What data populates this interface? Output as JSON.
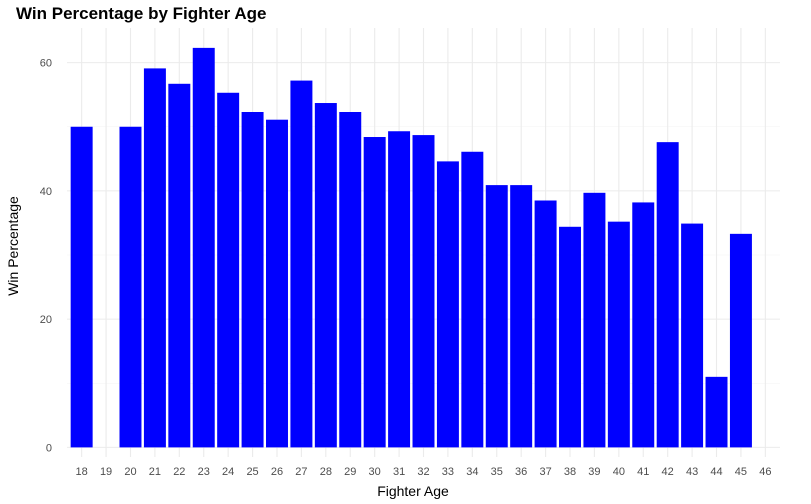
{
  "chart_data": {
    "type": "bar",
    "title": "Win Percentage by Fighter Age",
    "xlabel": "Fighter Age",
    "ylabel": "Win Percentage",
    "categories": [
      "18",
      "19",
      "20",
      "21",
      "22",
      "23",
      "24",
      "25",
      "26",
      "27",
      "28",
      "29",
      "30",
      "31",
      "32",
      "33",
      "34",
      "35",
      "36",
      "37",
      "38",
      "39",
      "40",
      "41",
      "42",
      "43",
      "44",
      "45",
      "46"
    ],
    "values": [
      50.0,
      null,
      50.0,
      59.1,
      56.7,
      62.3,
      55.3,
      52.3,
      51.1,
      57.2,
      53.7,
      52.3,
      48.4,
      49.3,
      48.7,
      44.6,
      46.1,
      40.9,
      40.9,
      38.5,
      34.4,
      39.7,
      35.2,
      38.2,
      47.6,
      34.9,
      11.0,
      33.3,
      null
    ],
    "yticks": [
      0,
      20,
      40,
      60
    ],
    "ylim": [
      -1.5,
      65.4
    ],
    "bar_color": "#0000FF",
    "grid": true
  }
}
